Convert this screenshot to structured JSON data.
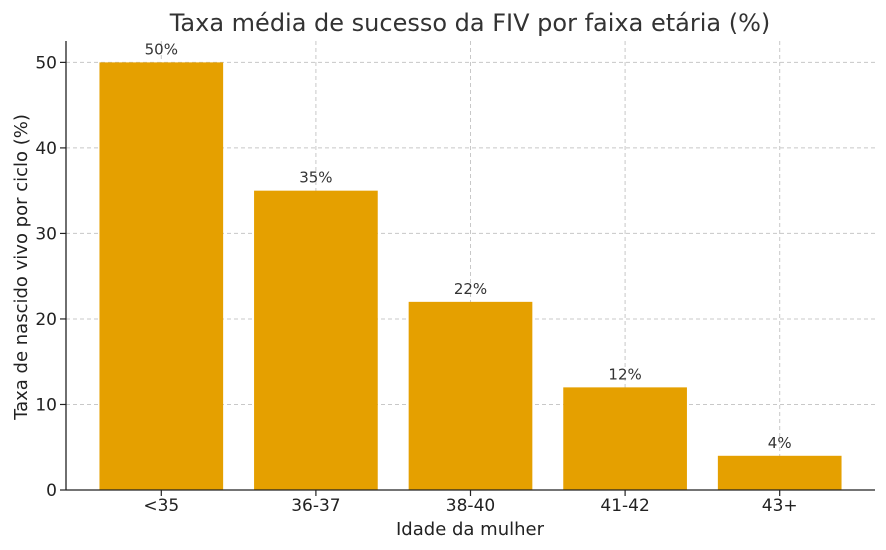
{
  "chart_data": {
    "type": "bar",
    "title": "Taxa média de sucesso da FIV por faixa etária (%)",
    "xlabel": "Idade da mulher",
    "ylabel": "Taxa de nascido vivo por ciclo (%)",
    "categories": [
      "<35",
      "36-37",
      "38-40",
      "41-42",
      "43+"
    ],
    "values": [
      50,
      35,
      22,
      12,
      4
    ],
    "data_labels": [
      "50%",
      "35%",
      "22%",
      "12%",
      "4%"
    ],
    "yticks": [
      0,
      10,
      20,
      30,
      40,
      50
    ],
    "ylim": [
      0,
      52.5
    ],
    "grid": true,
    "bar_color": "#E5A000"
  }
}
